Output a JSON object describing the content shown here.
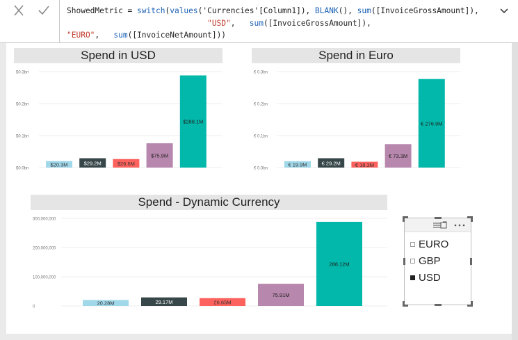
{
  "formula": {
    "line1_prefix": "ShowedMetric = ",
    "line1_fn": "switch",
    "line1_rest_a": "(",
    "line1_fn2": "values",
    "line1_rest_b": "('Currencies'[Column1]), ",
    "line1_fn3": "BLANK",
    "line1_rest_c": "(), ",
    "line1_fn4": "sum",
    "line1_rest_d": "([InvoiceGrossAmount]),",
    "line2_indent": "                              ",
    "line2_str": "\"USD\"",
    "line2_rest_a": ",   ",
    "line2_fn": "sum",
    "line2_rest_b": "([InvoiceGrossAmount]),",
    "line3_str": "\"EURO\"",
    "line3_rest_a": ",   ",
    "line3_fn": "sum",
    "line3_rest_b": "([InvoiceNetAmount]))"
  },
  "icons": {
    "cancel": "close-icon",
    "commit": "check-icon",
    "expand": "chevron-down-icon",
    "focus": "focus-mode-icon",
    "more": "more-options-icon"
  },
  "colors": {
    "light_blue": "#a0d8ea",
    "dark_slate": "#374649",
    "red": "#fd625e",
    "mauve": "#b887ad",
    "teal": "#01b8aa",
    "title_bg": "#e5e5e5"
  },
  "charts": {
    "usd": {
      "title": "Spend in USD",
      "ticks": [
        "$0.3bn",
        "$0.2bn",
        "$0.1bn",
        "$0.0bn"
      ],
      "labels": [
        "$20.3M",
        "$29.2M",
        "$26.6M",
        "$75.9M",
        "$288.1M"
      ]
    },
    "euro": {
      "title": "Spend in Euro",
      "ticks": [
        "€ 0.3bn",
        "€ 0.2bn",
        "€ 0.1bn",
        "€ 0.0bn"
      ],
      "labels": [
        "€ 19.9M",
        "€ 29.2M",
        "€ 18.3M",
        "€ 73.3M",
        "€ 276.9M"
      ]
    },
    "dynamic": {
      "title": "Spend - Dynamic Currency",
      "ticks": [
        "300,000,000",
        "200,000,000",
        "100,000,000",
        "0"
      ],
      "labels": [
        "20.28M",
        "29.17M",
        "26.65M",
        "75.91M",
        "288.12M"
      ]
    }
  },
  "chart_data": [
    {
      "type": "bar",
      "title": "Spend in USD",
      "values": [
        20.3,
        29.2,
        26.6,
        75.9,
        288.1
      ],
      "unit": "M",
      "ylim": [
        0,
        300
      ],
      "ytick_labels": [
        "$0.0bn",
        "$0.1bn",
        "$0.2bn",
        "$0.3bn"
      ],
      "data_labels": [
        "$20.3M",
        "$29.2M",
        "$26.6M",
        "$75.9M",
        "$288.1M"
      ]
    },
    {
      "type": "bar",
      "title": "Spend in Euro",
      "values": [
        19.9,
        29.2,
        18.3,
        73.3,
        276.9
      ],
      "unit": "M",
      "ylim": [
        0,
        300
      ],
      "ytick_labels": [
        "€ 0.0bn",
        "€ 0.1bn",
        "€ 0.2bn",
        "€ 0.3bn"
      ],
      "data_labels": [
        "€ 19.9M",
        "€ 29.2M",
        "€ 18.3M",
        "€ 73.3M",
        "€ 276.9M"
      ]
    },
    {
      "type": "bar",
      "title": "Spend - Dynamic Currency",
      "values": [
        20.28,
        29.17,
        26.65,
        75.91,
        288.12
      ],
      "unit": "M",
      "ylim": [
        0,
        300
      ],
      "ytick_labels": [
        "0",
        "100,000,000",
        "200,000,000",
        "300,000,000"
      ],
      "data_labels": [
        "20.28M",
        "29.17M",
        "26.65M",
        "75.91M",
        "288.12M"
      ]
    }
  ],
  "slicer": {
    "items": [
      {
        "label": "EURO",
        "checked": false
      },
      {
        "label": "GBP",
        "checked": false
      },
      {
        "label": "USD",
        "checked": true
      }
    ]
  }
}
